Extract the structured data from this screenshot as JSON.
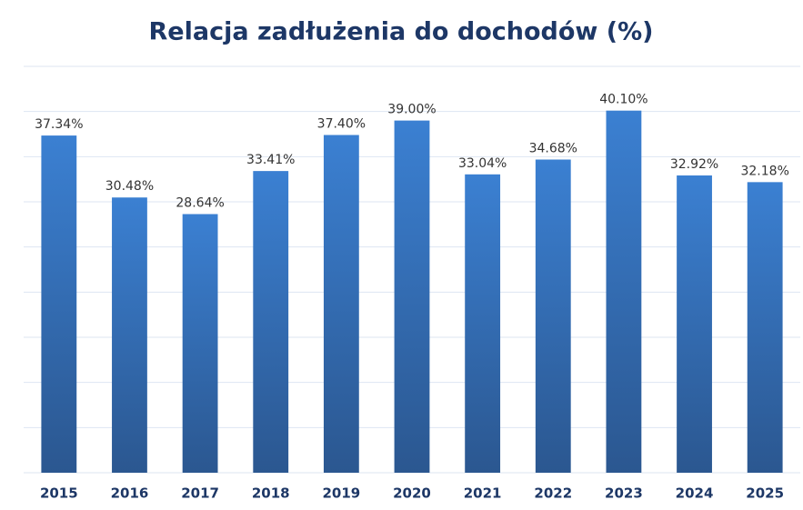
{
  "chart_data": {
    "type": "bar",
    "title": "Relacja zadłużenia do dochodów (%)",
    "categories": [
      "2015",
      "2016",
      "2017",
      "2018",
      "2019",
      "2020",
      "2021",
      "2022",
      "2023",
      "2024",
      "2025"
    ],
    "values": [
      37.34,
      30.48,
      28.64,
      33.41,
      37.4,
      39.0,
      33.04,
      34.68,
      40.1,
      32.92,
      32.18
    ],
    "value_labels": [
      "37.34%",
      "30.48%",
      "28.64%",
      "33.41%",
      "37.40%",
      "39.00%",
      "33.04%",
      "34.68%",
      "40.10%",
      "32.92%",
      "32.18%"
    ],
    "color": "#3b80d2",
    "ylim": [
      0,
      45
    ],
    "yticks": [
      0,
      5,
      10,
      15,
      20,
      25,
      30,
      35,
      40,
      45
    ],
    "grid": true
  }
}
